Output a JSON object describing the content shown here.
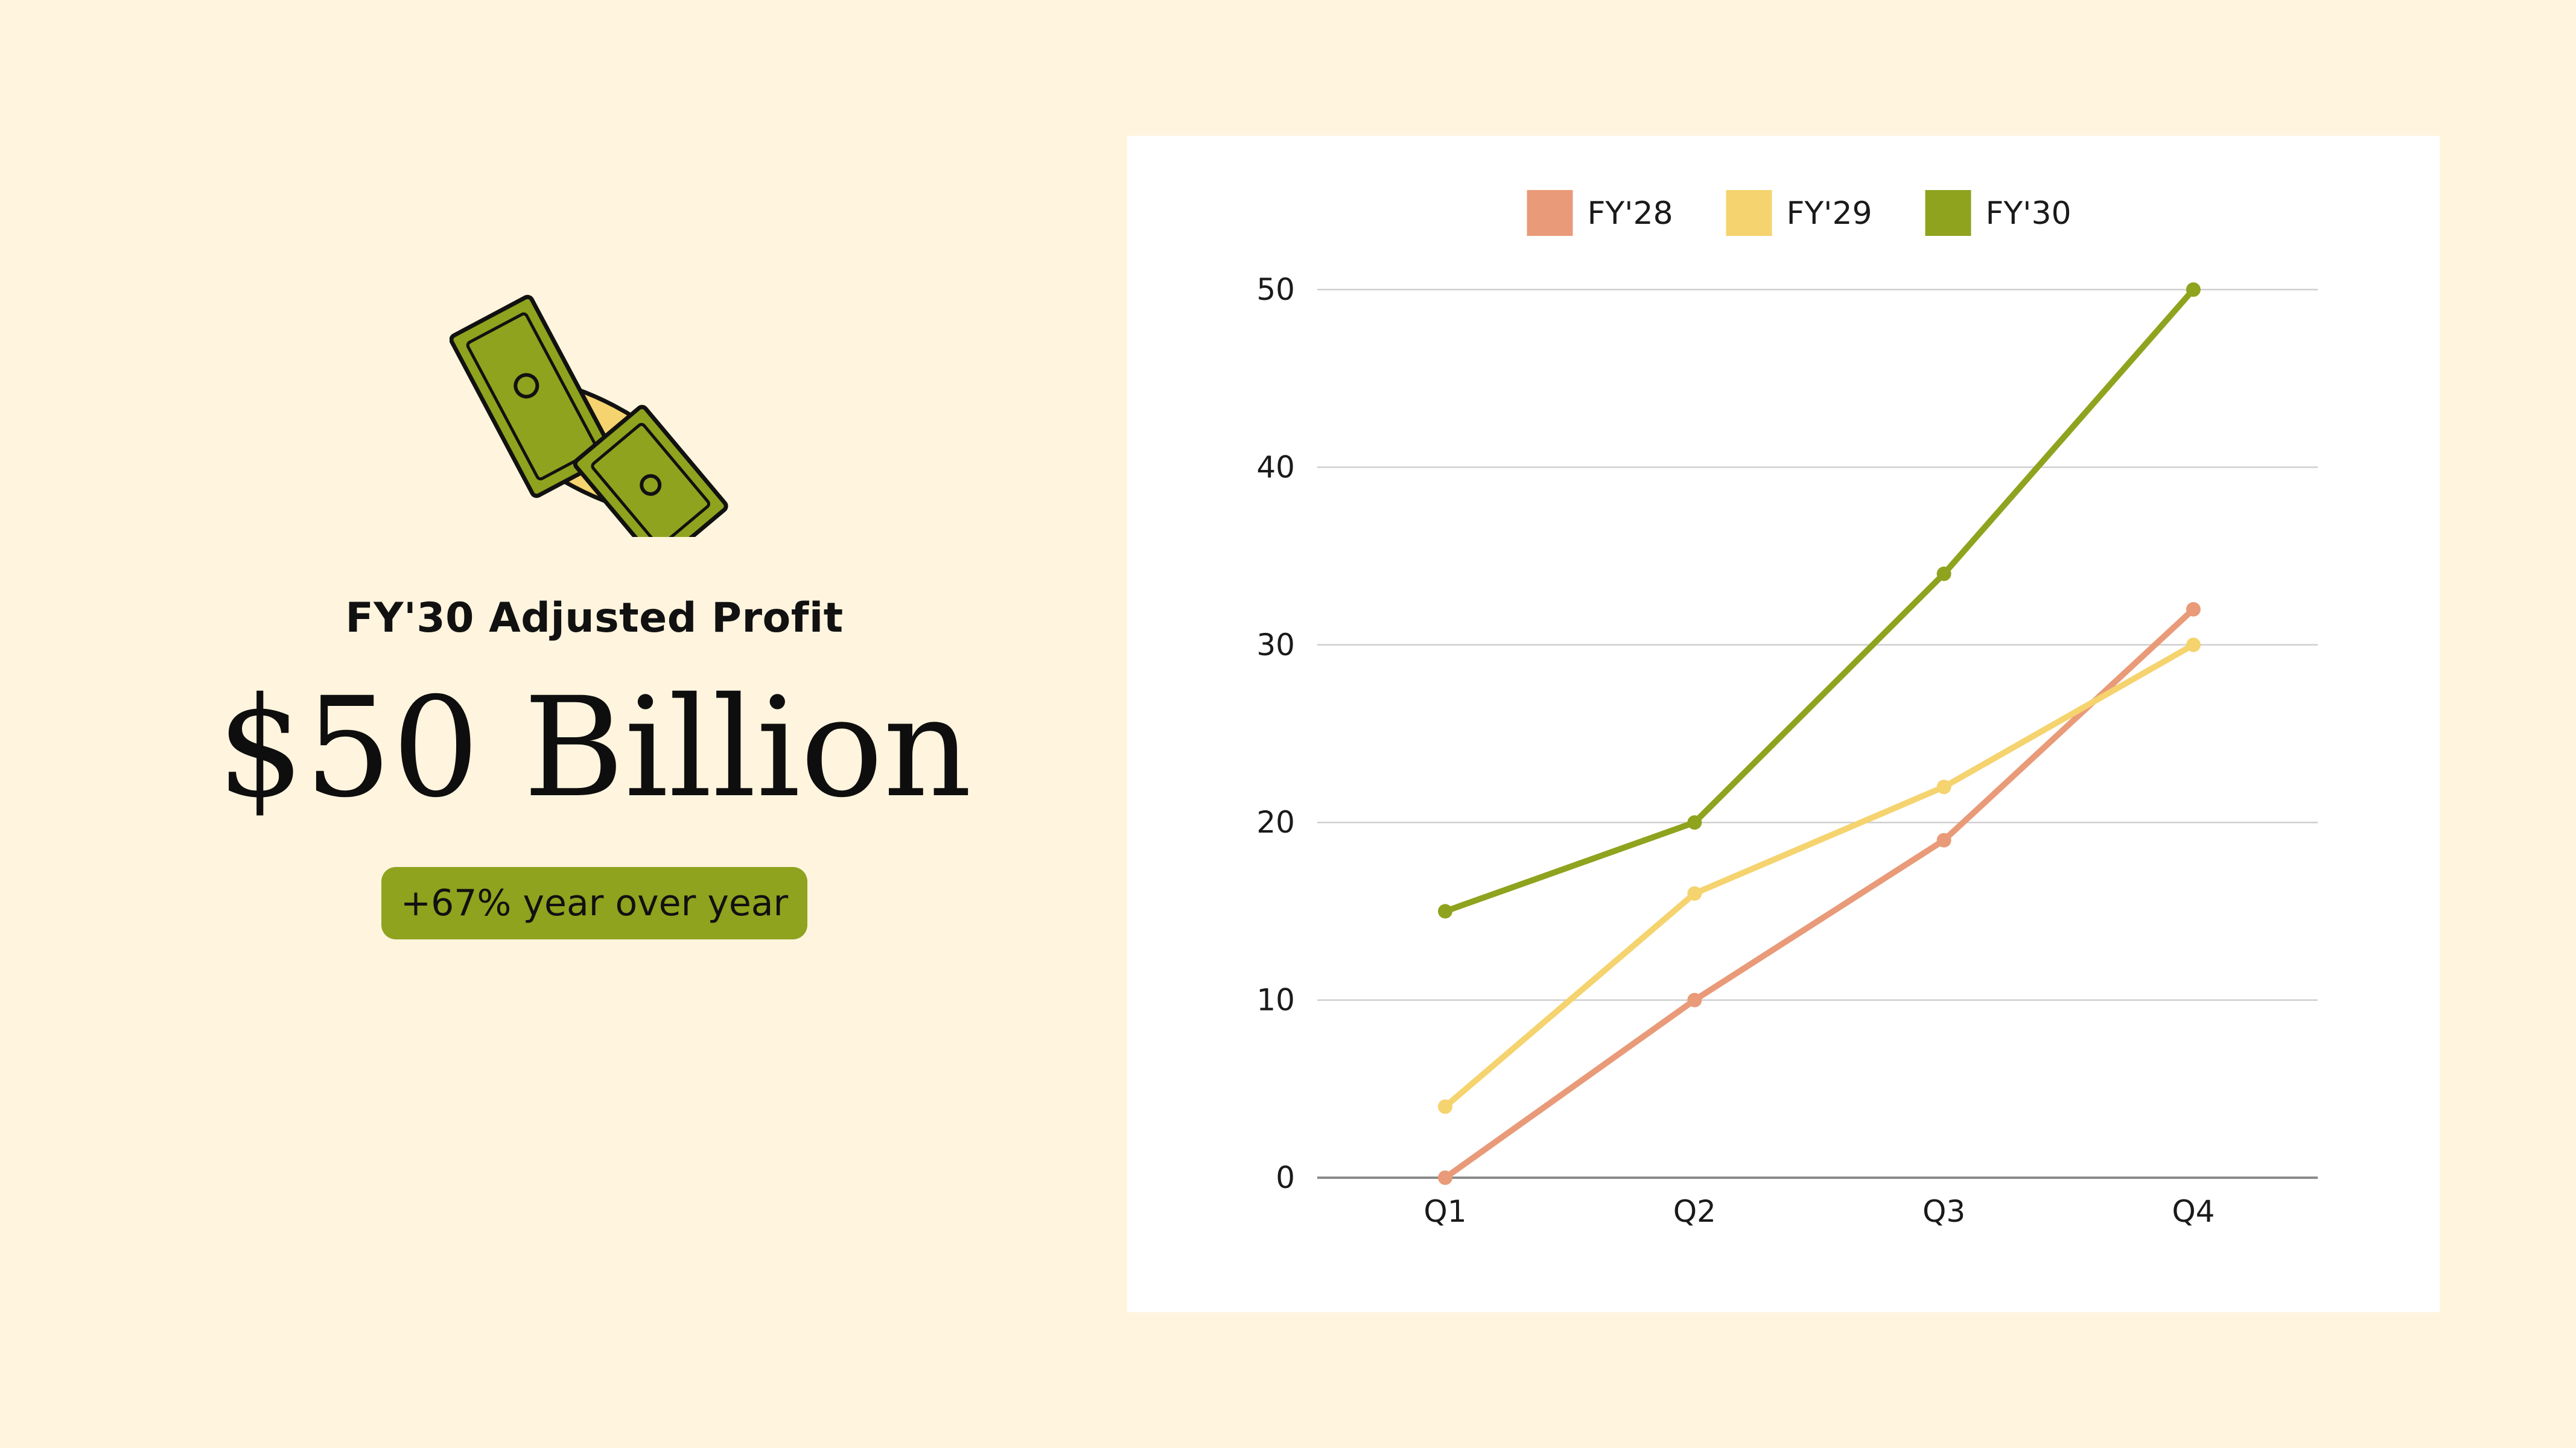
{
  "kpi": {
    "label": "FY'30 Adjusted Profit",
    "value": "$50 Billion",
    "change": "+67% year over year",
    "icon": "money-bills-icon",
    "badge_color": "#8FA31E"
  },
  "colors": {
    "background": "#FFF4DE",
    "card": "#FFFFFF",
    "grid": "#CFCFCF",
    "axis": "#8A8A8A"
  },
  "chart_data": {
    "type": "line",
    "categories": [
      "Q1",
      "Q2",
      "Q3",
      "Q4"
    ],
    "ylim": [
      0,
      50
    ],
    "yticks": [
      0,
      10,
      20,
      30,
      40,
      50
    ],
    "grid": true,
    "legend_position": "top",
    "series": [
      {
        "name": "FY'28",
        "color": "#E99A78",
        "values": [
          0,
          10,
          19,
          32
        ]
      },
      {
        "name": "FY'29",
        "color": "#F5D36E",
        "values": [
          4,
          16,
          22,
          30
        ]
      },
      {
        "name": "FY'30",
        "color": "#8FA31E",
        "values": [
          15,
          20,
          34,
          50
        ]
      }
    ]
  }
}
